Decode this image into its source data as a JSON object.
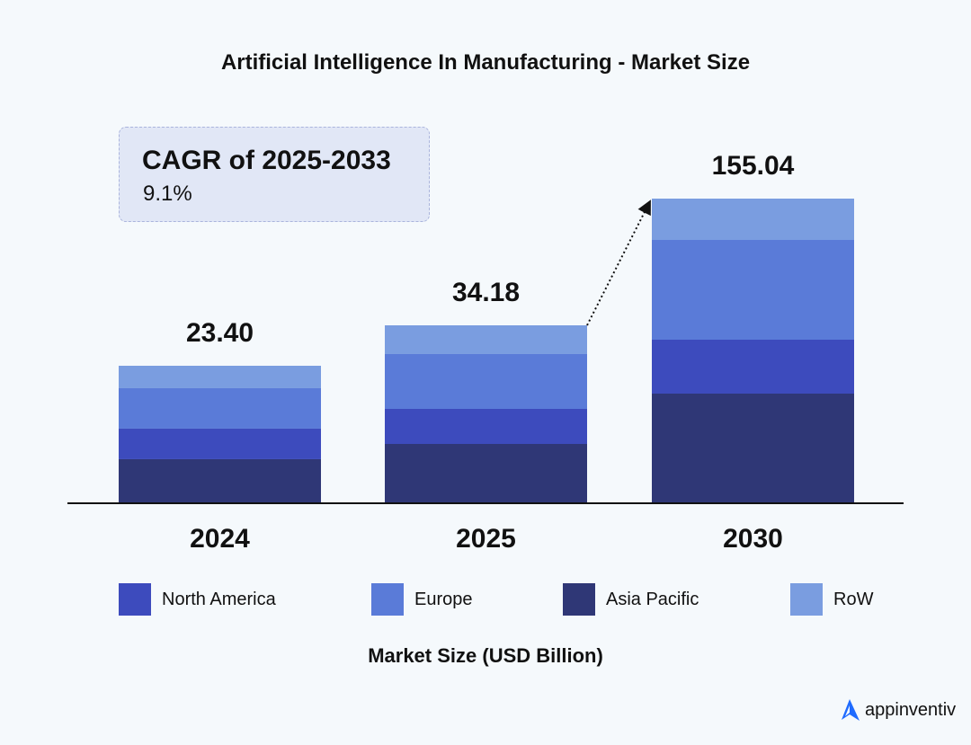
{
  "chart_data": {
    "type": "bar",
    "stacked": true,
    "title": "Artificial Intelligence In Manufacturing - Market Size",
    "xlabel": "Market Size (USD Billion)",
    "categories": [
      "2024",
      "2025",
      "2030"
    ],
    "totals": [
      23.4,
      34.18,
      155.04
    ],
    "total_labels": [
      "23.40",
      "34.18",
      "155.04"
    ],
    "series": [
      {
        "name": "Asia Pacific",
        "color": "#2f3776",
        "values": [
          7.5,
          11.39,
          55.8
        ]
      },
      {
        "name": "North America",
        "color": "#3d4bbd",
        "values": [
          5.2,
          6.73,
          27.44
        ]
      },
      {
        "name": "Europe",
        "color": "#5a7bd8",
        "values": [
          6.88,
          10.53,
          50.77
        ]
      },
      {
        "name": "RoW",
        "color": "#7a9de0",
        "values": [
          3.82,
          5.52,
          21.04
        ]
      }
    ],
    "legend_order": [
      "North America",
      "Europe",
      "Asia Pacific",
      "RoW"
    ],
    "legend_placement": "bottom",
    "grid": false,
    "annotation": {
      "heading": "CAGR of 2025-2033",
      "value": "9.1%"
    }
  },
  "brand": {
    "name": "appinventiv",
    "color": "#1f6bff"
  }
}
